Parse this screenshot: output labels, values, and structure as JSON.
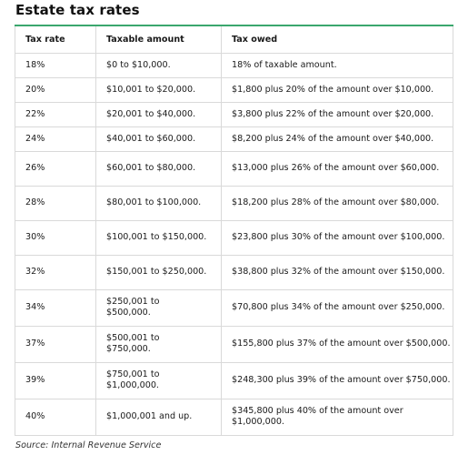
{
  "title": "Estate tax rates",
  "headers": [
    "Tax rate",
    "Taxable amount",
    "Tax owed"
  ],
  "rows": [
    {
      "rate": "18%",
      "amount": "$0 to $10,000.",
      "owed": "18% of taxable amount."
    },
    {
      "rate": "20%",
      "amount": "$10,001 to $20,000.",
      "owed": "$1,800 plus 20% of the amount over $10,000."
    },
    {
      "rate": "22%",
      "amount": "$20,001 to $40,000.",
      "owed": "$3,800 plus 22% of the amount over $20,000."
    },
    {
      "rate": "24%",
      "amount": "$40,001 to $60,000.",
      "owed": "$8,200 plus 24% of the amount over $40,000."
    },
    {
      "rate": "26%",
      "amount": "$60,001 to $80,000.",
      "owed": "$13,000 plus 26% of the amount over $60,000."
    },
    {
      "rate": "28%",
      "amount": "$80,001 to $100,000.",
      "owed": "$18,200 plus 28% of the amount over $80,000."
    },
    {
      "rate": "30%",
      "amount": "$100,001 to $150,000.",
      "owed": "$23,800 plus 30% of the amount over $100,000."
    },
    {
      "rate": "32%",
      "amount": "$150,001 to $250,000.",
      "owed": "$38,800 plus 32% of the amount over $150,000."
    },
    {
      "rate": "34%",
      "amount": "$250,001 to $500,000.",
      "owed": "$70,800 plus 34% of the amount over $250,000."
    },
    {
      "rate": "37%",
      "amount": "$500,001 to $750,000.",
      "owed": "$155,800 plus 37% of the amount over $500,000."
    },
    {
      "rate": "39%",
      "amount": "$750,001 to $1,000,000.",
      "owed": "$248,300 plus 39% of the amount over $750,000."
    },
    {
      "rate": "40%",
      "amount": "$1,000,001 and up.",
      "owed": "$345,800 plus 40% of the amount over $1,000,000."
    }
  ],
  "source": "Source: Internal Revenue Service",
  "colors": {
    "accent_rule": "#3aa76d",
    "grid": "#d9d9d9"
  }
}
